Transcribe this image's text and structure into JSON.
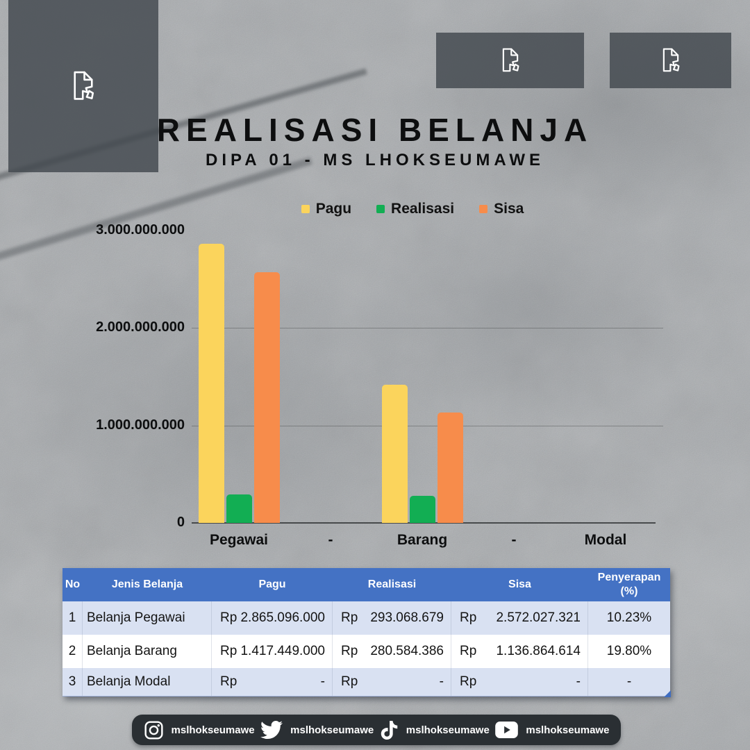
{
  "page": {
    "background_color": "#a8abae"
  },
  "header": {
    "title": "REALISASI BELANJA",
    "subtitle": "DIPA 01 - MS LHOKSEUMAWE"
  },
  "placeholders": [
    {
      "icon": "broken-image-icon"
    },
    {
      "icon": "broken-image-icon"
    },
    {
      "icon": "broken-image-icon"
    }
  ],
  "chart_data": {
    "type": "bar",
    "title": "",
    "categories": [
      "Pegawai",
      "-",
      "Barang",
      "-",
      "Modal"
    ],
    "series": [
      {
        "name": "Pagu",
        "color": "#FBD45C",
        "values": [
          2865096000,
          null,
          1417449000,
          null,
          null
        ]
      },
      {
        "name": "Realisasi",
        "color": "#12AE53",
        "values": [
          293068679,
          null,
          280584386,
          null,
          null
        ]
      },
      {
        "name": "Sisa",
        "color": "#F78C4B",
        "values": [
          2572027321,
          null,
          1136864614,
          null,
          null
        ]
      }
    ],
    "ylim": [
      0,
      3000000000
    ],
    "yticks": [
      {
        "value": 3000000000,
        "label": "3.000.000.000"
      },
      {
        "value": 2000000000,
        "label": "2.000.000.000"
      },
      {
        "value": 1000000000,
        "label": "1.000.000.000"
      },
      {
        "value": 0,
        "label": "0"
      }
    ],
    "gridline_values": [
      2000000000,
      1000000000
    ],
    "legend_position": "top",
    "grid": true
  },
  "table": {
    "header_bg": "#4472C4",
    "row_alt_bg": "#D9E1F2",
    "row_bg": "#FFFFFF",
    "columns": [
      "No",
      "Jenis Belanja",
      "Pagu",
      "Realisasi",
      "Sisa",
      "Penyerapan (%)"
    ],
    "rows": [
      {
        "no": "1",
        "jenis": "Belanja Pegawai",
        "pagu_cur": "Rp",
        "pagu": "2.865.096.000",
        "realisasi_cur": "Rp",
        "realisasi": "293.068.679",
        "sisa_cur": "Rp",
        "sisa": "2.572.027.321",
        "penyerapan": "10.23%"
      },
      {
        "no": "2",
        "jenis": "Belanja Barang",
        "pagu_cur": "Rp",
        "pagu": "1.417.449.000",
        "realisasi_cur": "Rp",
        "realisasi": "280.584.386",
        "sisa_cur": "Rp",
        "sisa": "1.136.864.614",
        "penyerapan": "19.80%"
      },
      {
        "no": "3",
        "jenis": "Belanja Modal",
        "pagu_cur": "Rp",
        "pagu": "-",
        "realisasi_cur": "Rp",
        "realisasi": "-",
        "sisa_cur": "Rp",
        "sisa": "-",
        "penyerapan": "-"
      }
    ]
  },
  "footer": {
    "background_color": "#2A2F33",
    "items": [
      {
        "icon": "instagram-icon",
        "handle": "mslhokseumawe"
      },
      {
        "icon": "twitter-icon",
        "handle": "mslhokseumawe"
      },
      {
        "icon": "tiktok-icon",
        "handle": "mslhokseumawe"
      },
      {
        "icon": "youtube-icon",
        "handle": "mslhokseumawe"
      }
    ]
  }
}
